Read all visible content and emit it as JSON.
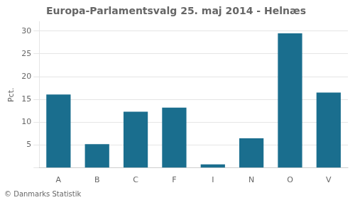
{
  "chart_data": {
    "type": "bar",
    "title": "Europa-Parlamentsvalg 25. maj 2014 - Helnæs",
    "categories": [
      "A",
      "B",
      "C",
      "F",
      "I",
      "N",
      "O",
      "V"
    ],
    "values": [
      16.1,
      5.2,
      12.3,
      13.2,
      0.8,
      6.5,
      29.5,
      16.5
    ],
    "color": "#1a6e8e",
    "ylabel": "Pct.",
    "ylim": [
      0,
      32
    ],
    "yticks": [
      {
        "value": 0,
        "label": ""
      },
      5,
      10,
      15,
      20,
      25,
      30
    ],
    "grid": true,
    "annotations": [
      "© Danmarks Statistik"
    ]
  }
}
